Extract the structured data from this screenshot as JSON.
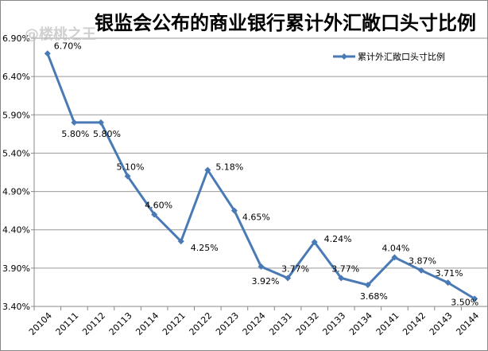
{
  "watermark": "@楼桃之王",
  "chart_data": {
    "type": "line",
    "title": "银监会公布的商业银行累计外汇敞口头寸比例",
    "categories": [
      "20104",
      "20111",
      "20112",
      "20113",
      "20114",
      "20121",
      "20122",
      "20123",
      "20124",
      "20131",
      "20132",
      "20133",
      "20134",
      "20141",
      "20142",
      "20143",
      "20144"
    ],
    "series": [
      {
        "name": "累计外汇敞口头寸比例",
        "values": [
          6.7,
          5.8,
          5.8,
          5.1,
          4.6,
          4.25,
          5.18,
          4.65,
          3.92,
          3.77,
          4.24,
          3.77,
          3.68,
          4.04,
          3.87,
          3.71,
          3.5
        ],
        "labels": [
          "6.70%",
          "5.80%",
          "5.80%",
          "5.10%",
          "4.60%",
          "4.25%",
          "5.18%",
          "4.65%",
          "3.92%",
          "3.77%",
          "4.24%",
          "3.77%",
          "3.68%",
          "4.04%",
          "3.87%",
          "3.71%",
          "3.50%"
        ]
      }
    ],
    "yticks": [
      "3.40%",
      "3.90%",
      "4.40%",
      "4.90%",
      "5.40%",
      "5.90%",
      "6.40%",
      "6.90%"
    ],
    "ylim": [
      3.4,
      6.9
    ],
    "grid": true,
    "legend": "top-right",
    "color": "#4a7ab5"
  }
}
